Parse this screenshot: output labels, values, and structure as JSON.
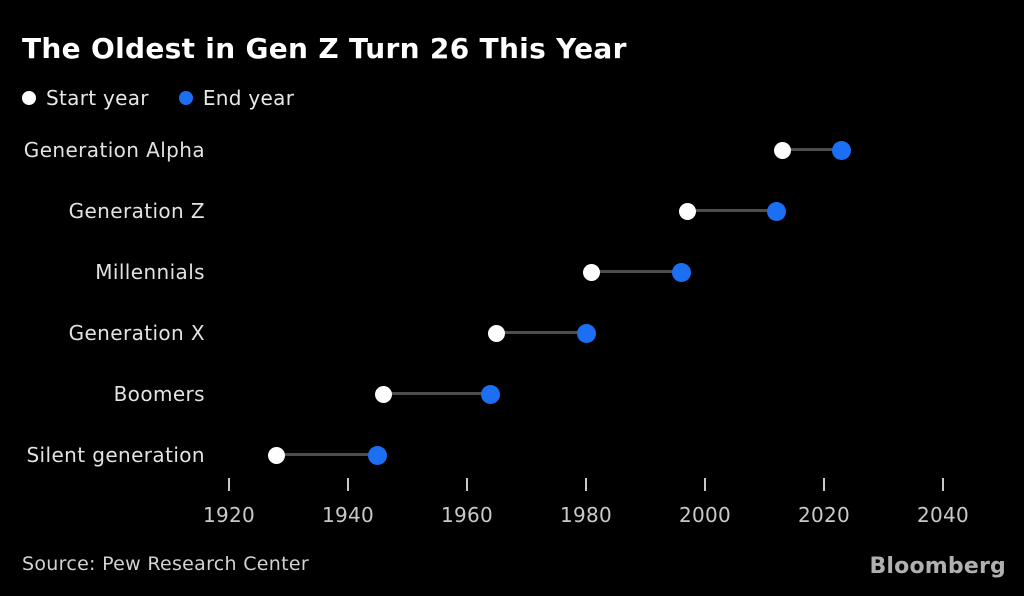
{
  "header": {
    "title": "The Oldest in Gen Z Turn 26 This Year"
  },
  "legend": {
    "items": [
      {
        "label": "Start year",
        "color": "#ffffff"
      },
      {
        "label": "End year",
        "color": "#1c6ef2"
      }
    ]
  },
  "chart_data": {
    "type": "dumbbell",
    "title": "The Oldest in Gen Z Turn 26 This Year",
    "categories": [
      "Generation Alpha",
      "Generation Z",
      "Millennials",
      "Generation X",
      "Boomers",
      "Silent generation"
    ],
    "series": [
      {
        "name": "Start year",
        "color": "#ffffff",
        "values": [
          2013,
          1997,
          1981,
          1965,
          1946,
          1928
        ]
      },
      {
        "name": "End year",
        "color": "#1c6ef2",
        "values": [
          2023,
          2012,
          1996,
          1980,
          1964,
          1945
        ]
      }
    ],
    "x_ticks": [
      1920,
      1940,
      1960,
      1980,
      2000,
      2020,
      2040
    ],
    "xlim": [
      1918,
      2047
    ],
    "grid": false,
    "legend_position": "top-left",
    "background": "#000000",
    "connector_color": "#4d4d4d",
    "tick_color": "#c9c9c9"
  },
  "footer": {
    "source": "Source: Pew Research Center",
    "brand": "Bloomberg"
  }
}
